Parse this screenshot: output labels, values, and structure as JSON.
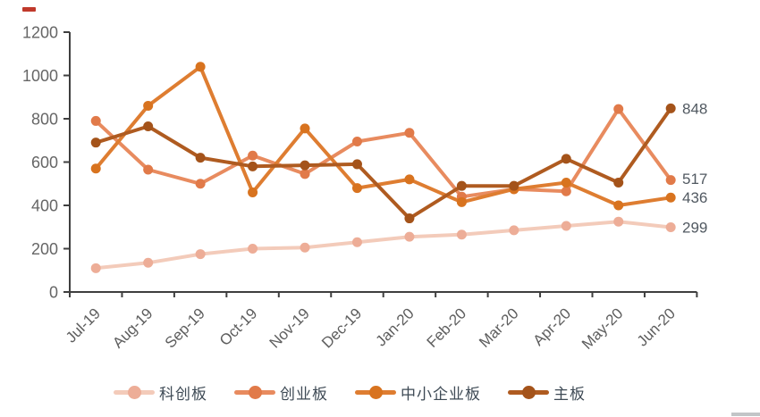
{
  "chart_data": {
    "type": "line",
    "categories": [
      "Jul-19",
      "Aug-19",
      "Sep-19",
      "Oct-19",
      "Nov-19",
      "Dec-19",
      "Jan-20",
      "Feb-20",
      "Mar-20",
      "Apr-20",
      "May-20",
      "Jun-20"
    ],
    "series": [
      {
        "name": "科创板",
        "slug": "star-market",
        "color": "#F3CBBA",
        "dot_color": "#EDAD97",
        "values": [
          110,
          135,
          175,
          200,
          205,
          230,
          255,
          265,
          285,
          305,
          325,
          299
        ],
        "end_label": "299"
      },
      {
        "name": "创业板",
        "slug": "chinext",
        "color": "#E88B5F",
        "dot_color": "#E17A49",
        "values": [
          790,
          565,
          500,
          630,
          545,
          695,
          735,
          440,
          475,
          465,
          845,
          517
        ],
        "end_label": "517"
      },
      {
        "name": "中小企业板",
        "slug": "sme-board",
        "color": "#DE7D31",
        "dot_color": "#D8731F",
        "values": [
          570,
          860,
          1040,
          460,
          755,
          480,
          520,
          415,
          475,
          505,
          400,
          436
        ],
        "end_label": "436"
      },
      {
        "name": "主板",
        "slug": "main-board",
        "color": "#AF5B20",
        "dot_color": "#A4531A",
        "values": [
          690,
          765,
          620,
          580,
          585,
          590,
          340,
          490,
          490,
          615,
          505,
          848
        ],
        "end_label": "848"
      }
    ],
    "ylim": [
      0,
      1200
    ],
    "yticks": [
      0,
      200,
      400,
      600,
      800,
      1000,
      1200
    ],
    "grid": false,
    "legend_position": "bottom",
    "title": "",
    "xlabel": "",
    "ylabel": ""
  },
  "colors": {
    "axis": "#3F3F3F",
    "y_tick_label": "#666666",
    "x_tick_label": "#5D5D5D",
    "end_label": "#515961",
    "legend_text": "#3E4A55",
    "top_left_dash": "#C0392B",
    "bottom_right_bar": "#C2C5C7"
  }
}
